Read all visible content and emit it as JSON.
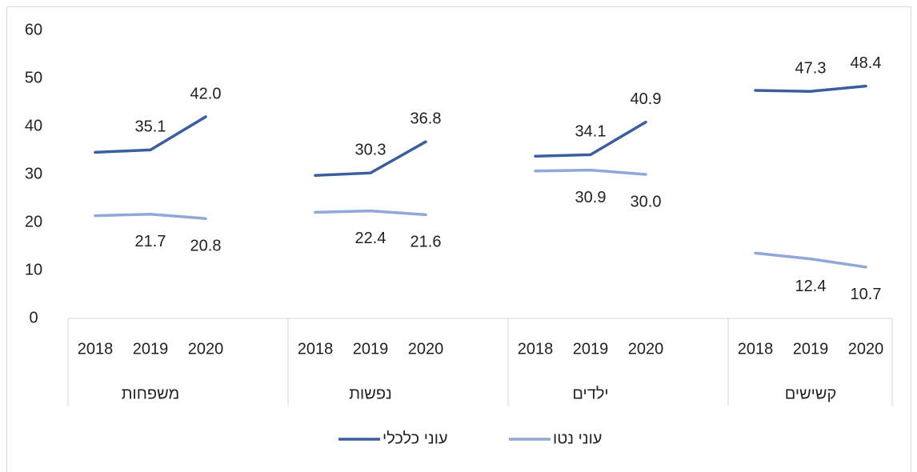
{
  "chart_data": {
    "type": "line",
    "groups": [
      "משפחות",
      "נפשות",
      "ילדים",
      "קשישים"
    ],
    "categories": [
      "2018",
      "2019",
      "2020",
      "2018",
      "2019",
      "2020",
      "2018",
      "2019",
      "2020",
      "2018",
      "2019",
      "2020"
    ],
    "series": [
      {
        "name": "עוני כלכלי",
        "color": "#3a5fa0",
        "values": [
          34.6,
          35.1,
          42.0,
          29.8,
          30.3,
          36.8,
          33.8,
          34.1,
          40.9,
          47.5,
          47.3,
          48.4
        ],
        "value_labels": [
          null,
          "35.1",
          "42.0",
          null,
          "30.3",
          "36.8",
          null,
          "34.1",
          "40.9",
          null,
          "47.3",
          "48.4"
        ]
      },
      {
        "name": "עוני נטו",
        "color": "#8fa8d8",
        "values": [
          21.4,
          21.7,
          20.8,
          22.1,
          22.4,
          21.6,
          30.7,
          30.9,
          30.0,
          13.6,
          12.4,
          10.7
        ],
        "value_labels": [
          null,
          "21.7",
          "20.8",
          null,
          "22.4",
          "21.6",
          null,
          "30.9",
          "30.0",
          null,
          "12.4",
          "10.7"
        ]
      }
    ],
    "ylim": [
      0,
      60
    ],
    "yticks": [
      0,
      10,
      20,
      30,
      40,
      50,
      60
    ],
    "grid": false,
    "legend": "bottom"
  }
}
